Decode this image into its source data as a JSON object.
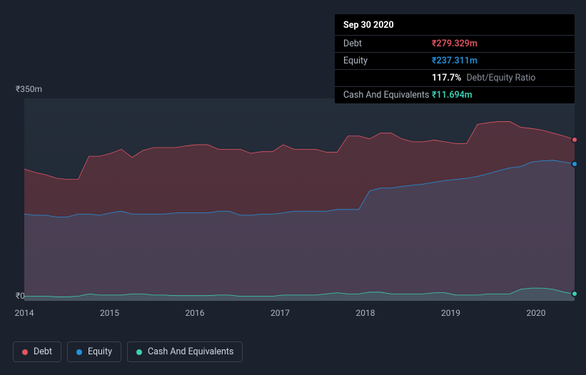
{
  "tooltip": {
    "date": "Sep 30 2020",
    "rows": [
      {
        "label": "Debt",
        "value": "₹279.329m",
        "color": "#e25563",
        "extra": ""
      },
      {
        "label": "Equity",
        "value": "₹237.311m",
        "color": "#2392dc",
        "extra": ""
      },
      {
        "label": "",
        "value": "117.7%",
        "color": "#ffffff",
        "extra": "Debt/Equity Ratio"
      },
      {
        "label": "Cash And Equivalents",
        "value": "₹11.694m",
        "color": "#3dcfb4",
        "extra": ""
      }
    ]
  },
  "chart": {
    "type": "area",
    "y_max_label": "₹350m",
    "y_min_label": "₹0",
    "y_max": 350,
    "y_min": 0,
    "x_labels": [
      "2014",
      "2015",
      "2016",
      "2017",
      "2018",
      "2019",
      "2020"
    ],
    "x_ticks_pct": [
      0,
      15.5,
      31,
      46.5,
      62,
      77.5,
      93
    ],
    "background_color": "#1b222d",
    "plot_bg": "#222b38",
    "series": [
      {
        "name": "Debt",
        "color": "#e25563",
        "fill": "rgba(168,60,70,0.35)",
        "y": [
          228,
          222,
          218,
          212,
          210,
          210,
          250,
          250,
          255,
          262,
          248,
          260,
          265,
          265,
          265,
          268,
          270,
          270,
          262,
          262,
          262,
          255,
          258,
          258,
          270,
          262,
          262,
          262,
          257,
          257,
          285,
          285,
          280,
          290,
          290,
          280,
          275,
          275,
          278,
          275,
          272,
          272,
          305,
          308,
          310,
          310,
          300,
          298,
          295,
          290,
          285,
          279
        ]
      },
      {
        "name": "Equity",
        "color": "#2392dc",
        "fill": "rgba(55,110,160,0.25)",
        "y": [
          150,
          148,
          148,
          145,
          145,
          150,
          150,
          148,
          152,
          155,
          150,
          150,
          150,
          150,
          152,
          152,
          152,
          152,
          155,
          155,
          148,
          148,
          150,
          150,
          152,
          155,
          155,
          155,
          155,
          158,
          158,
          158,
          190,
          195,
          195,
          198,
          200,
          202,
          205,
          208,
          210,
          212,
          215,
          220,
          225,
          230,
          232,
          240,
          242,
          243,
          240,
          237
        ]
      },
      {
        "name": "Cash And Equivalents",
        "color": "#3dcfb4",
        "fill": "rgba(61,207,180,0.15)",
        "y": [
          8,
          8,
          8,
          7,
          7,
          8,
          12,
          10,
          10,
          10,
          12,
          12,
          10,
          10,
          9,
          9,
          9,
          9,
          10,
          10,
          8,
          8,
          8,
          8,
          10,
          10,
          10,
          10,
          12,
          14,
          12,
          12,
          15,
          15,
          12,
          12,
          12,
          12,
          14,
          14,
          10,
          10,
          10,
          12,
          12,
          12,
          20,
          22,
          22,
          20,
          15,
          12
        ]
      }
    ]
  },
  "legend": [
    {
      "label": "Debt",
      "color": "#e25563"
    },
    {
      "label": "Equity",
      "color": "#2392dc"
    },
    {
      "label": "Cash And Equivalents",
      "color": "#3dcfb4"
    }
  ]
}
